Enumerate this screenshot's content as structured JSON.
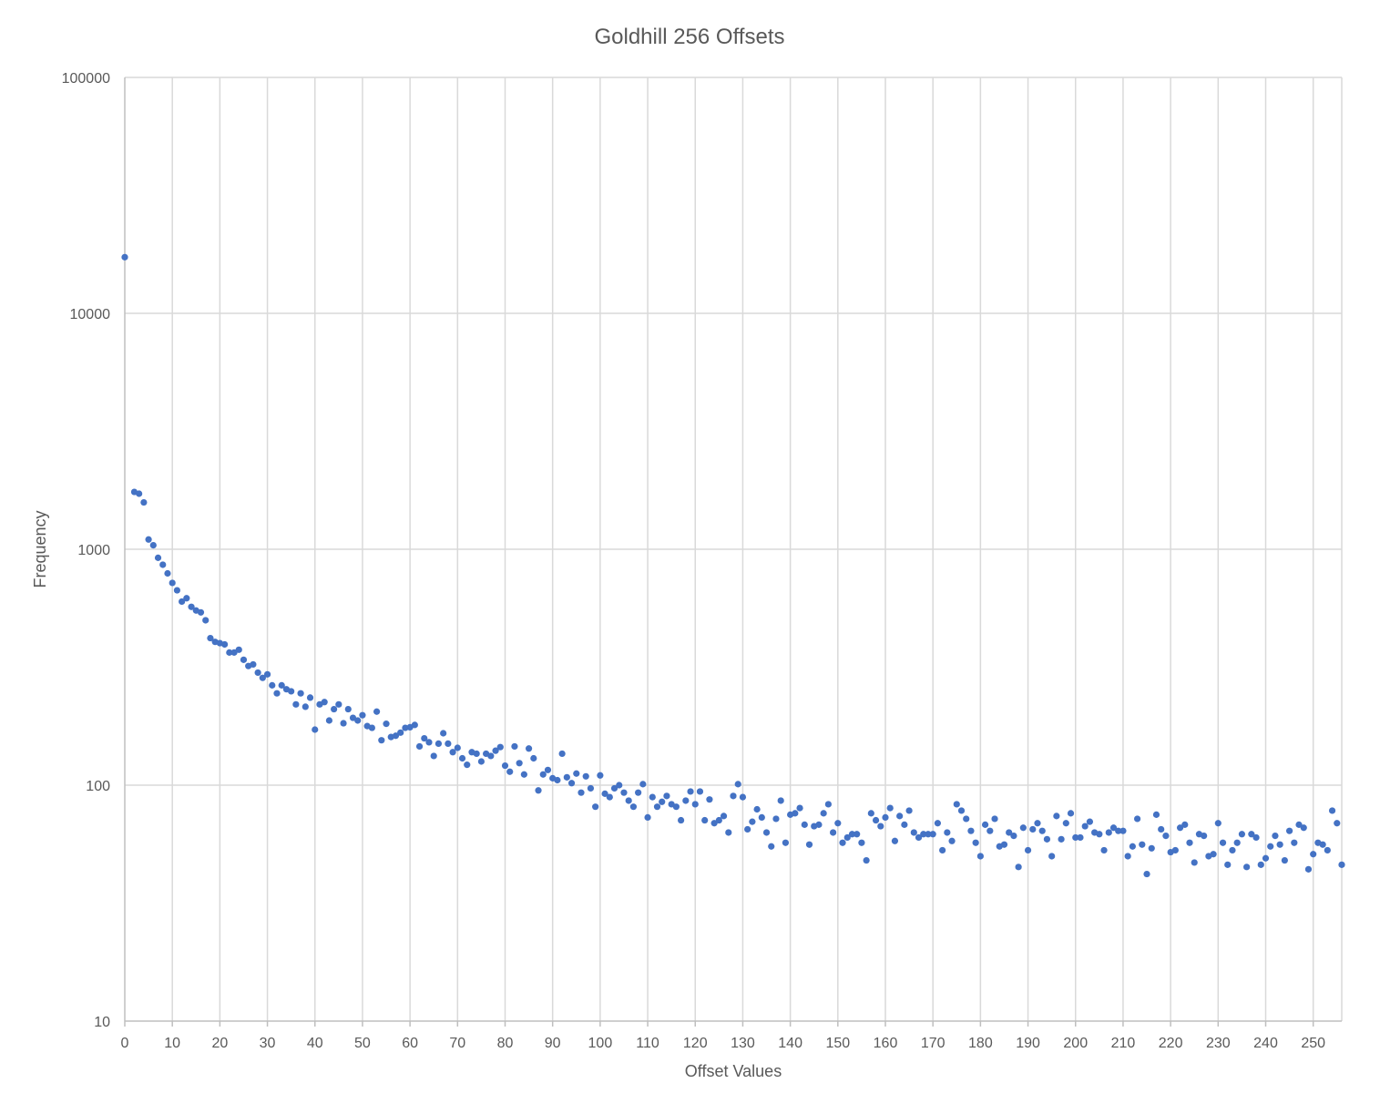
{
  "chart_data": {
    "type": "scatter",
    "title": "Goldhill 256 Offsets",
    "xlabel": "Offset Values",
    "ylabel": "Frequency",
    "xlim": [
      0,
      256
    ],
    "ylim": [
      10,
      100000
    ],
    "yscale": "log",
    "grid": true,
    "legend": "none",
    "marker_color": "#4472c4",
    "x_ticks": [
      0,
      10,
      20,
      30,
      40,
      50,
      60,
      70,
      80,
      90,
      100,
      110,
      120,
      130,
      140,
      150,
      160,
      170,
      180,
      190,
      200,
      210,
      220,
      230,
      240,
      250
    ],
    "x_tick_labels": [
      "0",
      "10",
      "20",
      "30",
      "40",
      "50",
      "60",
      "70",
      "80",
      "90",
      "100",
      "110",
      "120",
      "130",
      "140",
      "150",
      "160",
      "170",
      "180",
      "190",
      "200",
      "210",
      "220",
      "230",
      "240",
      "250"
    ],
    "y_ticks": [
      10,
      100,
      1000,
      10000,
      100000
    ],
    "y_tick_labels": [
      "10",
      "100",
      "1000",
      "10000",
      "100000"
    ],
    "series": [
      {
        "x": [
          0,
          2,
          3,
          4,
          5,
          6,
          7,
          8,
          9,
          10,
          11,
          12,
          13,
          14,
          15,
          16,
          17,
          18,
          19,
          20,
          21,
          22,
          23,
          24,
          25,
          26,
          27,
          28,
          29,
          30,
          31,
          32,
          33,
          34,
          35,
          36,
          37,
          38,
          39,
          40,
          41,
          42,
          43,
          44,
          45,
          46,
          47,
          48,
          49,
          50,
          51,
          52,
          53,
          54,
          55,
          56,
          57,
          58,
          59,
          60,
          61,
          62,
          63,
          64,
          65,
          66,
          67,
          68,
          69,
          70,
          71,
          72,
          73,
          74,
          75,
          76,
          77,
          78,
          79,
          80,
          81,
          82,
          83,
          84,
          85,
          86,
          87,
          88,
          89,
          90,
          91,
          92,
          93,
          94,
          95,
          96,
          97,
          98,
          99,
          100,
          101,
          102,
          103,
          104,
          105,
          106,
          107,
          108,
          109,
          110,
          111,
          112,
          113,
          114,
          115,
          116,
          117,
          118,
          119,
          120,
          121,
          122,
          123,
          124,
          125,
          126,
          127,
          128,
          129,
          130,
          131,
          132,
          133,
          134,
          135,
          136,
          137,
          138,
          139,
          140,
          141,
          142,
          143,
          144,
          145,
          146,
          147,
          148,
          149,
          150,
          151,
          152,
          153,
          154,
          155,
          156,
          157,
          158,
          159,
          160,
          161,
          162,
          163,
          164,
          165,
          166,
          167,
          168,
          169,
          170,
          171,
          172,
          173,
          174,
          175,
          176,
          177,
          178,
          179,
          180,
          181,
          182,
          183,
          184,
          185,
          186,
          187,
          188,
          189,
          190,
          191,
          192,
          193,
          194,
          195,
          196,
          197,
          198,
          199,
          200,
          201,
          202,
          203,
          204,
          205,
          206,
          207,
          208,
          209,
          210,
          211,
          212,
          213,
          214,
          215,
          216,
          217,
          218,
          219,
          220,
          221,
          222,
          223,
          224,
          225,
          226,
          227,
          228,
          229,
          230,
          231,
          232,
          233,
          234,
          235,
          236,
          237,
          238,
          239,
          240,
          241,
          242,
          243,
          244,
          245,
          246,
          247,
          248,
          249,
          250,
          251,
          252,
          253,
          254,
          255,
          256
        ],
        "y": [
          17300,
          1750,
          1720,
          1580,
          1100,
          1040,
          920,
          860,
          790,
          720,
          670,
          600,
          620,
          570,
          550,
          540,
          500,
          420,
          405,
          400,
          395,
          365,
          365,
          375,
          340,
          320,
          325,
          300,
          285,
          295,
          265,
          245,
          265,
          255,
          250,
          220,
          245,
          215,
          235,
          172,
          220,
          225,
          188,
          210,
          220,
          183,
          210,
          193,
          188,
          198,
          178,
          175,
          205,
          155,
          182,
          160,
          162,
          167,
          175,
          176,
          180,
          146,
          158,
          152,
          133,
          150,
          166,
          150,
          138,
          144,
          130,
          122,
          138,
          136,
          126,
          136,
          133,
          140,
          145,
          121,
          114,
          146,
          124,
          111,
          143,
          130,
          95,
          111,
          116,
          107,
          105,
          136,
          108,
          102,
          112,
          93,
          109,
          97,
          81,
          110,
          92,
          89,
          97,
          100,
          93,
          86,
          81,
          93,
          101,
          73,
          89,
          81,
          85,
          90,
          83,
          81,
          71,
          86,
          94,
          83,
          94,
          71,
          87,
          69,
          71,
          74,
          63,
          90,
          101,
          89,
          65,
          70,
          79,
          73,
          63,
          55,
          72,
          86,
          57,
          75,
          76,
          80,
          68,
          56,
          67,
          68,
          76,
          83,
          63,
          69,
          57,
          60,
          62,
          62,
          57,
          48,
          76,
          71,
          67,
          73,
          80,
          58,
          74,
          68,
          78,
          63,
          60,
          62,
          62,
          62,
          69,
          53,
          63,
          58,
          83,
          78,
          72,
          64,
          57,
          50,
          68,
          64,
          72,
          55,
          56,
          63,
          61,
          45,
          66,
          53,
          65,
          69,
          64,
          59,
          50,
          74,
          59,
          69,
          76,
          60,
          60,
          67,
          70,
          63,
          62,
          53,
          63,
          66,
          64,
          64,
          50,
          55,
          72,
          56,
          42,
          54,
          75,
          65,
          61,
          52,
          53,
          66,
          68,
          57,
          47,
          62,
          61,
          50,
          51,
          69,
          57,
          46,
          53,
          57,
          62,
          45,
          62,
          60,
          46,
          49,
          55,
          61,
          56,
          48,
          64,
          57,
          68,
          66,
          44,
          51,
          57,
          56,
          53,
          78,
          69,
          46
        ]
      }
    ]
  }
}
